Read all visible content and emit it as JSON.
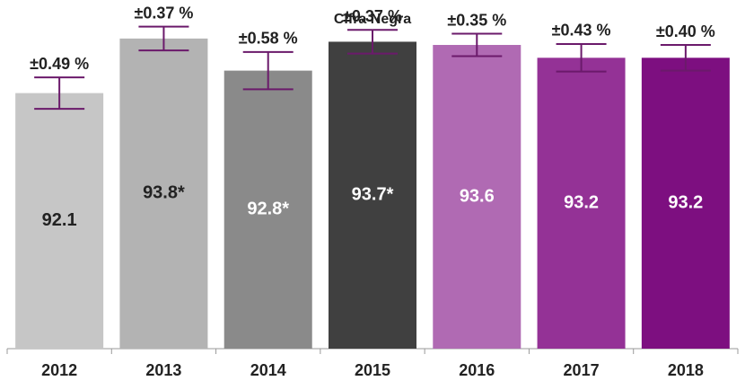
{
  "chart_data": {
    "type": "bar",
    "title": "Cifra Negra",
    "categories": [
      "2012",
      "2013",
      "2014",
      "2015",
      "2016",
      "2017",
      "2018"
    ],
    "values": [
      92.1,
      93.8,
      92.8,
      93.7,
      93.6,
      93.2,
      93.2
    ],
    "value_labels": [
      "92.1",
      "93.8*",
      "92.8*",
      "93.7*",
      "93.6",
      "93.2",
      "93.2"
    ],
    "errors": [
      0.49,
      0.37,
      0.58,
      0.37,
      0.35,
      0.43,
      0.4
    ],
    "error_labels": [
      "±0.49 %",
      "±0.37 %",
      "±0.58 %",
      "±0.37 %",
      "±0.35 %",
      "±0.43 %",
      "±0.40 %"
    ],
    "colors": [
      "#c6c6c6",
      "#b3b3b3",
      "#8a8a8a",
      "#404040",
      "#b06ab3",
      "#943296",
      "#7d0f80"
    ],
    "error_color": "#6b1a6b",
    "ylim": [
      84.14,
      95
    ]
  }
}
